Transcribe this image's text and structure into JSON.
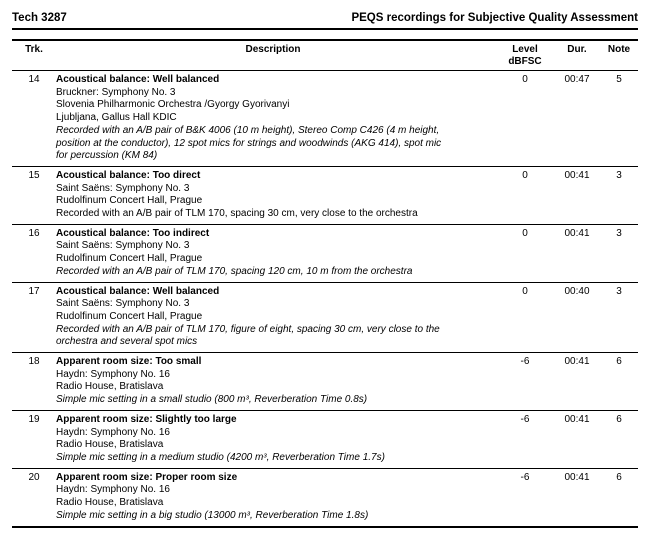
{
  "colors": {
    "text": "#000000",
    "rule": "#000000",
    "background": "#ffffff"
  },
  "header": {
    "doc_ref": "Tech 3287",
    "doc_title": "PEQS recordings for Subjective Quality Assessment"
  },
  "table": {
    "headers": {
      "trk": "Trk.",
      "description": "Description",
      "level_line1": "Level",
      "level_line2": "dBFSC",
      "dur": "Dur.",
      "note": "Note"
    },
    "rows": [
      {
        "trk": "14",
        "title": "Acoustical balance: Well balanced",
        "lines": [
          "Bruckner: Symphony No. 3",
          "Slovenia Philharmonic Orchestra /Gyorgy Gyorivanyi",
          "Ljubljana, Gallus Hall KDIC"
        ],
        "detail_lines": [
          "Recorded with an A/B pair of B&K 4006 (10 m height), Stereo Comp C426 (4 m height,",
          "position at the conductor), 12 spot mics for strings and woodwinds (AKG 414), spot mic",
          "for percussion (KM 84)"
        ],
        "detail_italic": true,
        "level": "0",
        "dur": "00:47",
        "note": "5"
      },
      {
        "trk": "15",
        "title": "Acoustical balance: Too direct",
        "lines": [
          "Saint Saëns: Symphony No. 3",
          "Rudolfinum Concert Hall, Prague"
        ],
        "detail_lines": [
          "Recorded with an A/B pair of TLM 170, spacing 30 cm, very close to the orchestra"
        ],
        "detail_italic": false,
        "level": "0",
        "dur": "00:41",
        "note": "3"
      },
      {
        "trk": "16",
        "title": "Acoustical balance: Too indirect",
        "lines": [
          "Saint Saëns: Symphony No. 3",
          "Rudolfinum Concert Hall, Prague"
        ],
        "detail_lines": [
          "Recorded with an A/B pair of TLM 170, spacing 120 cm, 10 m from the orchestra"
        ],
        "detail_italic": true,
        "level": "0",
        "dur": "00:41",
        "note": "3"
      },
      {
        "trk": "17",
        "title": "Acoustical balance: Well balanced",
        "lines": [
          "Saint Saëns: Symphony No. 3",
          "Rudolfinum Concert Hall, Prague"
        ],
        "detail_lines": [
          "Recorded with an A/B pair of TLM 170, figure of eight, spacing 30 cm, very close to the",
          "orchestra and several spot mics"
        ],
        "detail_italic": true,
        "level": "0",
        "dur": "00:40",
        "note": "3"
      },
      {
        "trk": "18",
        "title": "Apparent room size: Too small",
        "lines": [
          "Haydn: Symphony No. 16",
          "Radio House, Bratislava"
        ],
        "detail_lines": [
          "Simple mic setting in a small studio (800 m³, Reverberation Time 0.8s)"
        ],
        "detail_italic": true,
        "level": "-6",
        "dur": "00:41",
        "note": "6"
      },
      {
        "trk": "19",
        "title": "Apparent room size: Slightly too large",
        "lines": [
          "Haydn: Symphony No. 16",
          "Radio House, Bratislava"
        ],
        "detail_lines": [
          "Simple mic setting in a medium studio (4200 m³, Reverberation Time 1.7s)"
        ],
        "detail_italic": true,
        "level": "-6",
        "dur": "00:41",
        "note": "6"
      },
      {
        "trk": "20",
        "title": "Apparent room size: Proper room size",
        "lines": [
          "Haydn: Symphony No. 16",
          "Radio House, Bratislava"
        ],
        "detail_lines": [
          "Simple mic setting in a big studio (13000 m³, Reverberation Time 1.8s)"
        ],
        "detail_italic": true,
        "level": "-6",
        "dur": "00:41",
        "note": "6"
      }
    ]
  }
}
